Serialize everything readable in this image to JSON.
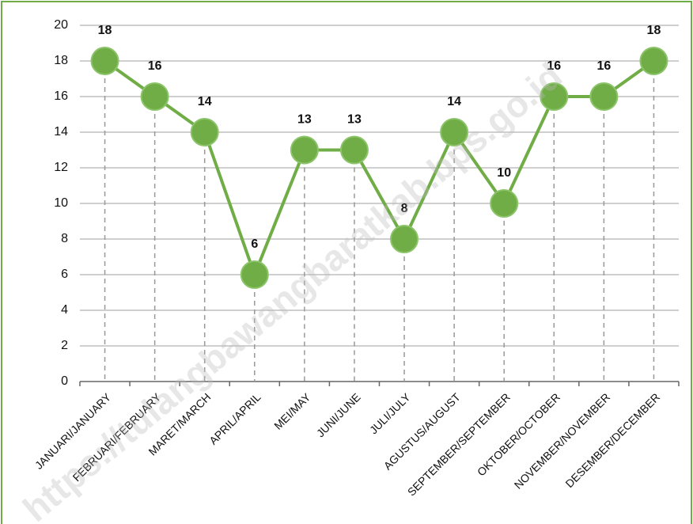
{
  "chart_data": {
    "type": "line",
    "categories": [
      "JANUARI/JANUARY",
      "FEBRUARI/FEBRUARY",
      "MARET/MARCH",
      "APRIL/APRIL",
      "MEI/MAY",
      "JUNI/JUNE",
      "JULI/JULY",
      "AGUSTUS/AUGUST",
      "SEPTEMBER/SEPTEMBER",
      "OKTOBER/OCTOBER",
      "NOVEMBER/NOVEMBER",
      "DESEMBER/DECEMBER"
    ],
    "values": [
      18,
      16,
      14,
      6,
      13,
      13,
      8,
      14,
      10,
      16,
      16,
      18
    ],
    "color": "#70ad47",
    "ylim": [
      0,
      20
    ],
    "yticks": [
      0,
      2,
      4,
      6,
      8,
      10,
      12,
      14,
      16,
      18,
      20
    ],
    "grid": true,
    "watermark": "https://tulangbawangbaratkab.bps.go.id"
  }
}
